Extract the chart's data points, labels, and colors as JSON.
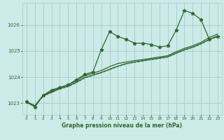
{
  "background_color": "#cceae7",
  "grid_color": "#aacccc",
  "line_color": "#2d6a2d",
  "title": "Graphe pression niveau de la mer (hPa)",
  "xlim": [
    -0.5,
    23.5
  ],
  "ylim": [
    1022.55,
    1026.85
  ],
  "yticks": [
    1023,
    1024,
    1025,
    1026
  ],
  "xticks": [
    0,
    1,
    2,
    3,
    4,
    5,
    6,
    7,
    8,
    9,
    10,
    11,
    12,
    13,
    14,
    15,
    16,
    17,
    18,
    19,
    20,
    21,
    22,
    23
  ],
  "series": [
    {
      "x": [
        0,
        1,
        2,
        3,
        4,
        5,
        6,
        7,
        8,
        9,
        10,
        11,
        12,
        13,
        14,
        15,
        16,
        17,
        18,
        19,
        20,
        21,
        22,
        23
      ],
      "y": [
        1023.05,
        1022.85,
        1023.3,
        1023.5,
        1023.6,
        1023.7,
        1023.9,
        1024.1,
        1024.2,
        1025.05,
        1025.75,
        1025.55,
        1025.45,
        1025.3,
        1025.3,
        1025.25,
        1025.15,
        1025.2,
        1025.8,
        1026.55,
        1026.45,
        1026.2,
        1025.45,
        1025.55
      ],
      "marker": "*",
      "markersize": 3.5,
      "linestyle": "-",
      "linewidth": 0.9
    },
    {
      "x": [
        0,
        1,
        2,
        3,
        4,
        5,
        6,
        7,
        8,
        9,
        10,
        11,
        12,
        13,
        14,
        15,
        16,
        17,
        18,
        19,
        20,
        21,
        22,
        23
      ],
      "y": [
        1023.05,
        1022.9,
        1023.28,
        1023.42,
        1023.56,
        1023.65,
        1023.8,
        1023.98,
        1024.08,
        1024.18,
        1024.3,
        1024.42,
        1024.52,
        1024.58,
        1024.63,
        1024.68,
        1024.73,
        1024.78,
        1024.92,
        1025.05,
        1025.15,
        1025.28,
        1025.45,
        1025.58
      ],
      "marker": null,
      "linestyle": "-",
      "linewidth": 0.9
    },
    {
      "x": [
        0,
        1,
        2,
        3,
        4,
        5,
        6,
        7,
        8,
        9,
        10,
        11,
        12,
        13,
        14,
        15,
        16,
        17,
        18,
        19,
        20,
        21,
        22,
        23
      ],
      "y": [
        1023.05,
        1022.9,
        1023.3,
        1023.45,
        1023.6,
        1023.7,
        1023.85,
        1024.05,
        1024.15,
        1024.25,
        1024.4,
        1024.52,
        1024.58,
        1024.63,
        1024.67,
        1024.72,
        1024.77,
        1024.82,
        1024.97,
        1025.1,
        1025.2,
        1025.33,
        1025.52,
        1025.65
      ],
      "marker": null,
      "linestyle": "-",
      "linewidth": 0.9
    },
    {
      "x": [
        0,
        1,
        2,
        3,
        4,
        5,
        6,
        7,
        8,
        9,
        10,
        11,
        12,
        13,
        14,
        15,
        16,
        17,
        18,
        19,
        20,
        21,
        22,
        23
      ],
      "y": [
        1023.0,
        1022.88,
        1023.26,
        1023.4,
        1023.54,
        1023.63,
        1023.78,
        1023.96,
        1024.06,
        1024.16,
        1024.28,
        1024.4,
        1024.5,
        1024.56,
        1024.61,
        1024.66,
        1024.71,
        1024.76,
        1024.9,
        1025.03,
        1025.13,
        1025.26,
        1025.43,
        1025.56
      ],
      "marker": null,
      "linestyle": "--",
      "linewidth": 0.7
    }
  ]
}
